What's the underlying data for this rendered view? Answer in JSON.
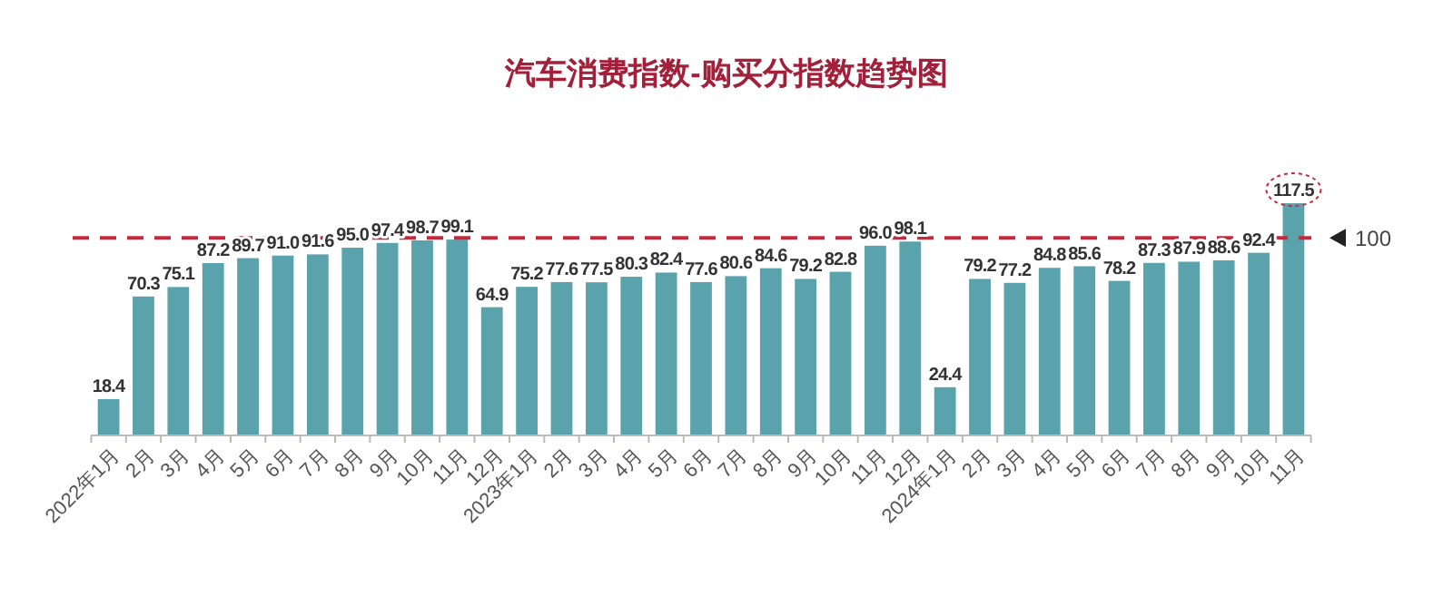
{
  "chart_data": {
    "type": "bar",
    "title": "汽车消费指数-购买分指数趋势图",
    "categories": [
      "2022年1月",
      "2月",
      "3月",
      "4月",
      "5月",
      "6月",
      "7月",
      "8月",
      "9月",
      "10月",
      "11月",
      "12月",
      "2023年1月",
      "2月",
      "3月",
      "4月",
      "5月",
      "6月",
      "7月",
      "8月",
      "9月",
      "10月",
      "11月",
      "12月",
      "2024年1月",
      "2月",
      "3月",
      "4月",
      "5月",
      "6月",
      "7月",
      "8月",
      "9月",
      "10月",
      "11月"
    ],
    "values": [
      18.4,
      70.3,
      75.1,
      87.2,
      89.7,
      91.0,
      91.6,
      95.0,
      97.4,
      98.7,
      99.1,
      64.9,
      75.2,
      77.6,
      77.5,
      80.3,
      82.4,
      77.6,
      80.6,
      84.6,
      79.2,
      82.8,
      96.0,
      98.1,
      24.4,
      79.2,
      77.2,
      84.8,
      85.6,
      78.2,
      87.3,
      87.9,
      88.6,
      92.4,
      117.5
    ],
    "value_labels": [
      "18.4",
      "70.3",
      "75.1",
      "87.2",
      "89.7",
      "91.0",
      "91.6",
      "95.0",
      "97.4",
      "98.7",
      "99.1",
      "64.9",
      "75.2",
      "77.6",
      "77.5",
      "80.3",
      "82.4",
      "77.6",
      "80.6",
      "84.6",
      "79.2",
      "82.8",
      "96.0",
      "98.1",
      "24.4",
      "79.2",
      "77.2",
      "84.8",
      "85.6",
      "78.2",
      "87.3",
      "87.9",
      "88.6",
      "92.4",
      "117.5"
    ],
    "color": "#5aa3ad",
    "tick_labels": "x",
    "ref_lines": [
      {
        "axis": "y",
        "value": 100,
        "label": "100",
        "color": "#c8283c",
        "line_style": "dashed"
      }
    ]
  }
}
